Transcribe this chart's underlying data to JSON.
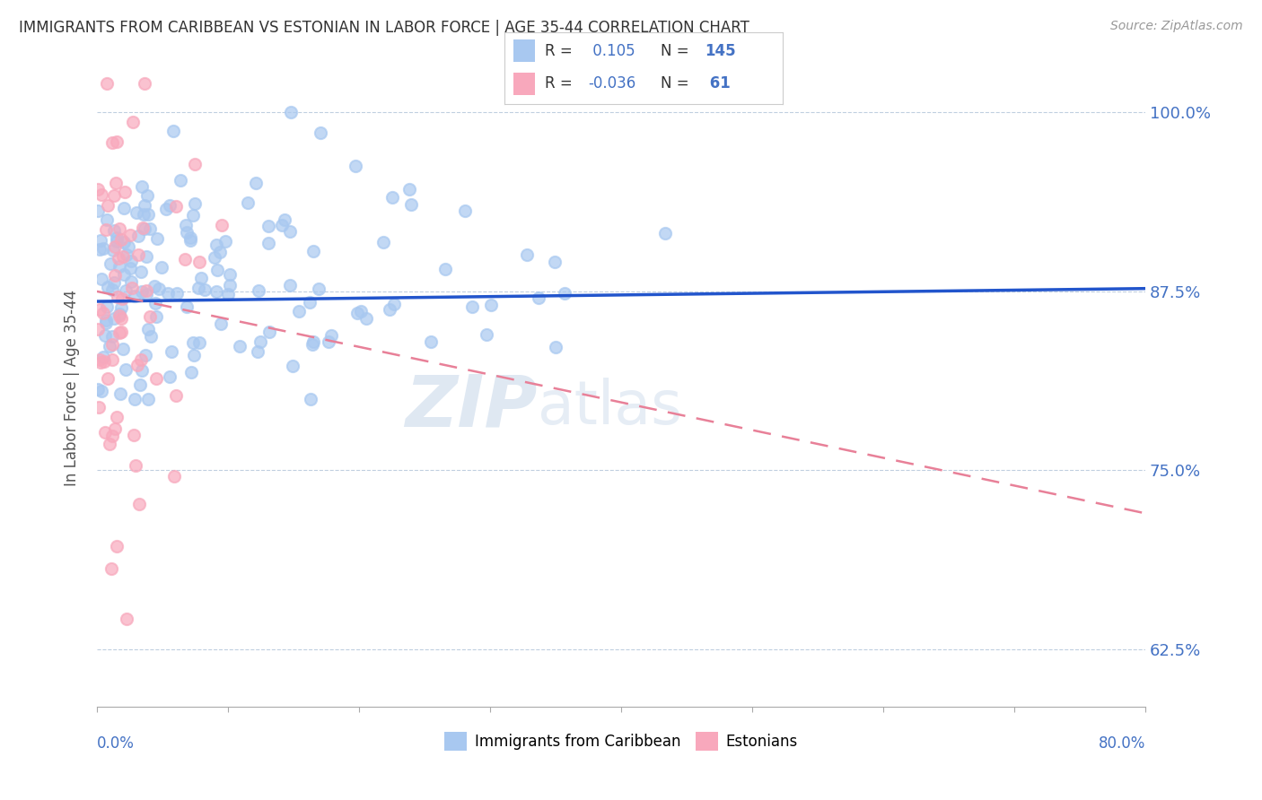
{
  "title": "IMMIGRANTS FROM CARIBBEAN VS ESTONIAN IN LABOR FORCE | AGE 35-44 CORRELATION CHART",
  "source": "Source: ZipAtlas.com",
  "ylabel": "In Labor Force | Age 35-44",
  "right_yticks": [
    0.625,
    0.75,
    0.875,
    1.0
  ],
  "right_yticklabels": [
    "62.5%",
    "75.0%",
    "87.5%",
    "100.0%"
  ],
  "xmin": 0.0,
  "xmax": 0.8,
  "ymin": 0.585,
  "ymax": 1.03,
  "caribbean_R": 0.105,
  "caribbean_N": 145,
  "estonian_R": -0.036,
  "estonian_N": 61,
  "caribbean_color": "#a8c8f0",
  "estonian_color": "#f8a8bc",
  "trend_caribbean_color": "#2255cc",
  "trend_estonian_color": "#e88098",
  "legend_text_color": "#4472c4",
  "watermark_zip": "ZIP",
  "watermark_atlas": "atlas",
  "caribbean_seed": 42,
  "estonian_seed": 7
}
